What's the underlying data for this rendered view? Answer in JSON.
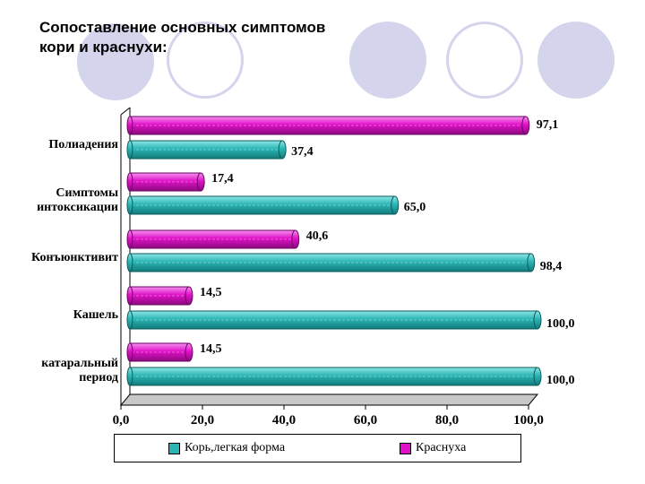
{
  "title_lines": [
    "Сопоставление основных симптомов",
    "кори и краснухи:"
  ],
  "colors": {
    "measles": "#2ab5b5",
    "rubella": "#e010c8",
    "circle_fill": "#d4d4ec",
    "circle_stroke": "#d4d4ec"
  },
  "chart_data": {
    "type": "bar",
    "orientation": "horizontal",
    "categories": [
      [
        "Полиадения"
      ],
      [
        "Симптомы",
        "интоксикации"
      ],
      [
        "Конъюнктивит"
      ],
      [
        "Кашель"
      ],
      [
        "катаральный",
        "период"
      ]
    ],
    "series": [
      {
        "name": "Краснуха",
        "values": [
          97.1,
          17.4,
          40.6,
          14.5,
          14.5
        ],
        "labels": [
          "97,1",
          "17,4",
          "40,6",
          "14,5",
          "14,5"
        ]
      },
      {
        "name": "Корь,легкая форма",
        "values": [
          37.4,
          65.0,
          98.4,
          100.0,
          100.0
        ],
        "labels": [
          "37,4",
          "65,0",
          "98,4",
          "100,0",
          "100,0"
        ]
      }
    ],
    "xlim": [
      0,
      100
    ],
    "xticks": [
      "0,0",
      "20,0",
      "40,0",
      "60,0",
      "80,0",
      "100,0"
    ],
    "legend_position": "bottom"
  },
  "legend": [
    {
      "label": "Корь,легкая форма",
      "color": "#2ab5b5"
    },
    {
      "label": "Краснуха",
      "color": "#e010c8"
    }
  ]
}
